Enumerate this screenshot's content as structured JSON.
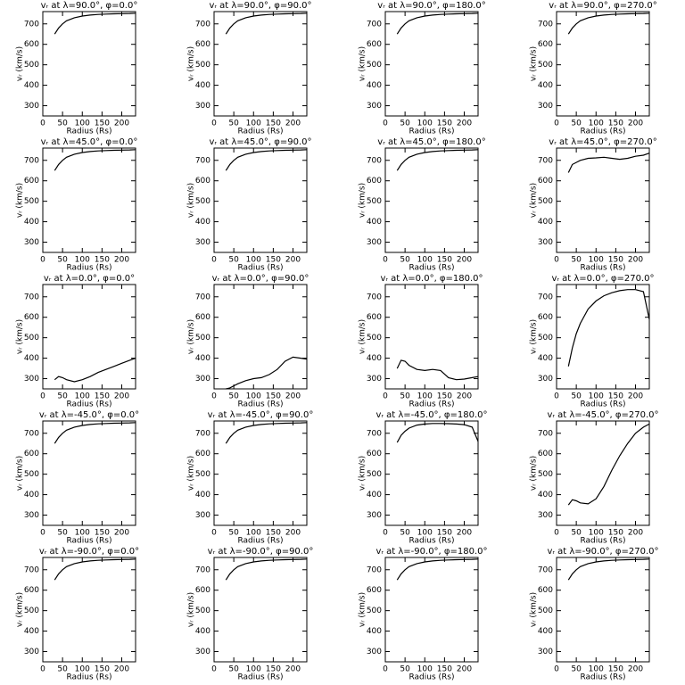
{
  "chart_data": [
    {
      "type": "line",
      "title": "vᵣ at λ=90.0°, φ=0.0°",
      "x_label": "Radius (Rs)",
      "y_label": "vᵣ (km/s)",
      "x": [
        30,
        40,
        50,
        60,
        80,
        100,
        120,
        140,
        160,
        180,
        200,
        220,
        235
      ],
      "values": [
        650,
        680,
        700,
        715,
        730,
        738,
        743,
        746,
        748,
        749,
        750,
        751,
        752
      ],
      "color": "#000000",
      "xlim": [
        0,
        235
      ],
      "ylim": [
        250,
        760
      ],
      "xticks": [
        0,
        50,
        100,
        150,
        200
      ],
      "yticks": [
        300,
        400,
        500,
        600,
        700
      ]
    },
    {
      "type": "line",
      "title": "vᵣ at λ=90.0°, φ=90.0°",
      "x_label": "Radius (Rs)",
      "y_label": "vᵣ (km/s)",
      "x": [
        30,
        40,
        50,
        60,
        80,
        100,
        120,
        140,
        160,
        180,
        200,
        220,
        235
      ],
      "values": [
        650,
        680,
        700,
        715,
        730,
        738,
        743,
        746,
        748,
        749,
        750,
        751,
        752
      ],
      "color": "#000000",
      "xlim": [
        0,
        235
      ],
      "ylim": [
        250,
        760
      ],
      "xticks": [
        0,
        50,
        100,
        150,
        200
      ],
      "yticks": [
        300,
        400,
        500,
        600,
        700
      ]
    },
    {
      "type": "line",
      "title": "vᵣ at λ=90.0°, φ=180.0°",
      "x_label": "Radius (Rs)",
      "y_label": "vᵣ (km/s)",
      "x": [
        30,
        40,
        50,
        60,
        80,
        100,
        120,
        140,
        160,
        180,
        200,
        220,
        235
      ],
      "values": [
        650,
        680,
        700,
        715,
        730,
        738,
        743,
        746,
        748,
        749,
        750,
        751,
        752
      ],
      "color": "#000000",
      "xlim": [
        0,
        235
      ],
      "ylim": [
        250,
        760
      ],
      "xticks": [
        0,
        50,
        100,
        150,
        200
      ],
      "yticks": [
        300,
        400,
        500,
        600,
        700
      ]
    },
    {
      "type": "line",
      "title": "vᵣ at λ=90.0°, φ=270.0°",
      "x_label": "Radius (Rs)",
      "y_label": "vᵣ (km/s)",
      "x": [
        30,
        40,
        50,
        60,
        80,
        100,
        120,
        140,
        160,
        180,
        200,
        220,
        235
      ],
      "values": [
        650,
        680,
        700,
        715,
        730,
        738,
        743,
        746,
        748,
        749,
        750,
        751,
        752
      ],
      "color": "#000000",
      "xlim": [
        0,
        235
      ],
      "ylim": [
        250,
        760
      ],
      "xticks": [
        0,
        50,
        100,
        150,
        200
      ],
      "yticks": [
        300,
        400,
        500,
        600,
        700
      ]
    },
    {
      "type": "line",
      "title": "vᵣ at λ=45.0°, φ=0.0°",
      "x_label": "Radius (Rs)",
      "y_label": "vᵣ (km/s)",
      "x": [
        30,
        40,
        50,
        60,
        80,
        100,
        120,
        140,
        160,
        180,
        200,
        220,
        235
      ],
      "values": [
        650,
        680,
        700,
        715,
        730,
        738,
        743,
        746,
        748,
        749,
        750,
        751,
        752
      ],
      "color": "#000000",
      "xlim": [
        0,
        235
      ],
      "ylim": [
        250,
        760
      ],
      "xticks": [
        0,
        50,
        100,
        150,
        200
      ],
      "yticks": [
        300,
        400,
        500,
        600,
        700
      ]
    },
    {
      "type": "line",
      "title": "vᵣ at λ=45.0°, φ=90.0°",
      "x_label": "Radius (Rs)",
      "y_label": "vᵣ (km/s)",
      "x": [
        30,
        40,
        50,
        60,
        80,
        100,
        120,
        140,
        160,
        180,
        200,
        220,
        235
      ],
      "values": [
        650,
        680,
        700,
        715,
        730,
        738,
        743,
        746,
        748,
        749,
        750,
        751,
        752
      ],
      "color": "#000000",
      "xlim": [
        0,
        235
      ],
      "ylim": [
        250,
        760
      ],
      "xticks": [
        0,
        50,
        100,
        150,
        200
      ],
      "yticks": [
        300,
        400,
        500,
        600,
        700
      ]
    },
    {
      "type": "line",
      "title": "vᵣ at λ=45.0°, φ=180.0°",
      "x_label": "Radius (Rs)",
      "y_label": "vᵣ (km/s)",
      "x": [
        30,
        40,
        50,
        60,
        80,
        100,
        120,
        140,
        160,
        180,
        200,
        220,
        235
      ],
      "values": [
        650,
        680,
        700,
        715,
        730,
        738,
        743,
        746,
        748,
        749,
        750,
        751,
        752
      ],
      "color": "#000000",
      "xlim": [
        0,
        235
      ],
      "ylim": [
        250,
        760
      ],
      "xticks": [
        0,
        50,
        100,
        150,
        200
      ],
      "yticks": [
        300,
        400,
        500,
        600,
        700
      ]
    },
    {
      "type": "line",
      "title": "vᵣ at λ=45.0°, φ=270.0°",
      "x_label": "Radius (Rs)",
      "y_label": "vᵣ (km/s)",
      "x": [
        30,
        40,
        50,
        60,
        80,
        100,
        120,
        140,
        160,
        180,
        200,
        220,
        235
      ],
      "values": [
        640,
        680,
        690,
        700,
        710,
        712,
        715,
        710,
        705,
        710,
        720,
        725,
        735
      ],
      "color": "#000000",
      "xlim": [
        0,
        235
      ],
      "ylim": [
        250,
        760
      ],
      "xticks": [
        0,
        50,
        100,
        150,
        200
      ],
      "yticks": [
        300,
        400,
        500,
        600,
        700
      ]
    },
    {
      "type": "line",
      "title": "vᵣ at λ=0.0°, φ=0.0°",
      "x_label": "Radius (Rs)",
      "y_label": "vᵣ (km/s)",
      "x": [
        30,
        40,
        50,
        60,
        80,
        100,
        120,
        140,
        160,
        180,
        200,
        220,
        235
      ],
      "values": [
        295,
        310,
        305,
        295,
        285,
        295,
        310,
        330,
        345,
        360,
        375,
        390,
        400
      ],
      "color": "#000000",
      "xlim": [
        0,
        235
      ],
      "ylim": [
        250,
        760
      ],
      "xticks": [
        0,
        50,
        100,
        150,
        200
      ],
      "yticks": [
        300,
        400,
        500,
        600,
        700
      ]
    },
    {
      "type": "line",
      "title": "vᵣ at λ=0.0°, φ=90.0°",
      "x_label": "Radius (Rs)",
      "y_label": "vᵣ (km/s)",
      "x": [
        30,
        40,
        50,
        60,
        80,
        100,
        120,
        140,
        160,
        180,
        200,
        220,
        235
      ],
      "values": [
        250,
        255,
        265,
        275,
        290,
        300,
        305,
        320,
        345,
        385,
        405,
        400,
        395
      ],
      "color": "#000000",
      "xlim": [
        0,
        235
      ],
      "ylim": [
        250,
        760
      ],
      "xticks": [
        0,
        50,
        100,
        150,
        200
      ],
      "yticks": [
        300,
        400,
        500,
        600,
        700
      ]
    },
    {
      "type": "line",
      "title": "vᵣ at λ=0.0°, φ=180.0°",
      "x_label": "Radius (Rs)",
      "y_label": "vᵣ (km/s)",
      "x": [
        30,
        40,
        50,
        60,
        80,
        100,
        120,
        140,
        160,
        180,
        200,
        220,
        235
      ],
      "values": [
        350,
        390,
        385,
        365,
        345,
        340,
        345,
        340,
        305,
        295,
        298,
        305,
        310
      ],
      "color": "#000000",
      "xlim": [
        0,
        235
      ],
      "ylim": [
        250,
        760
      ],
      "xticks": [
        0,
        50,
        100,
        150,
        200
      ],
      "yticks": [
        300,
        400,
        500,
        600,
        700
      ]
    },
    {
      "type": "line",
      "title": "vᵣ at λ=0.0°, φ=270.0°",
      "x_label": "Radius (Rs)",
      "y_label": "vᵣ (km/s)",
      "x": [
        30,
        40,
        50,
        60,
        80,
        100,
        120,
        140,
        160,
        180,
        200,
        220,
        235
      ],
      "values": [
        360,
        450,
        520,
        570,
        640,
        680,
        705,
        720,
        730,
        735,
        735,
        725,
        590
      ],
      "color": "#000000",
      "xlim": [
        0,
        235
      ],
      "ylim": [
        250,
        760
      ],
      "xticks": [
        0,
        50,
        100,
        150,
        200
      ],
      "yticks": [
        300,
        400,
        500,
        600,
        700
      ]
    },
    {
      "type": "line",
      "title": "vᵣ at λ=-45.0°, φ=0.0°",
      "x_label": "Radius (Rs)",
      "y_label": "vᵣ (km/s)",
      "x": [
        30,
        40,
        50,
        60,
        80,
        100,
        120,
        140,
        160,
        180,
        200,
        220,
        235
      ],
      "values": [
        650,
        680,
        700,
        715,
        730,
        738,
        743,
        746,
        748,
        749,
        750,
        751,
        752
      ],
      "color": "#000000",
      "xlim": [
        0,
        235
      ],
      "ylim": [
        250,
        760
      ],
      "xticks": [
        0,
        50,
        100,
        150,
        200
      ],
      "yticks": [
        300,
        400,
        500,
        600,
        700
      ]
    },
    {
      "type": "line",
      "title": "vᵣ at λ=-45.0°, φ=90.0°",
      "x_label": "Radius (Rs)",
      "y_label": "vᵣ (km/s)",
      "x": [
        30,
        40,
        50,
        60,
        80,
        100,
        120,
        140,
        160,
        180,
        200,
        220,
        235
      ],
      "values": [
        650,
        680,
        700,
        715,
        730,
        738,
        743,
        746,
        748,
        749,
        750,
        751,
        752
      ],
      "color": "#000000",
      "xlim": [
        0,
        235
      ],
      "ylim": [
        250,
        760
      ],
      "xticks": [
        0,
        50,
        100,
        150,
        200
      ],
      "yticks": [
        300,
        400,
        500,
        600,
        700
      ]
    },
    {
      "type": "line",
      "title": "vᵣ at λ=-45.0°, φ=180.0°",
      "x_label": "Radius (Rs)",
      "y_label": "vᵣ (km/s)",
      "x": [
        30,
        40,
        50,
        60,
        80,
        100,
        120,
        140,
        160,
        180,
        200,
        220,
        235
      ],
      "values": [
        655,
        690,
        710,
        725,
        740,
        745,
        748,
        748,
        747,
        745,
        742,
        730,
        660
      ],
      "color": "#000000",
      "xlim": [
        0,
        235
      ],
      "ylim": [
        250,
        760
      ],
      "xticks": [
        0,
        50,
        100,
        150,
        200
      ],
      "yticks": [
        300,
        400,
        500,
        600,
        700
      ]
    },
    {
      "type": "line",
      "title": "vᵣ at λ=-45.0°, φ=270.0°",
      "x_label": "Radius (Rs)",
      "y_label": "vᵣ (km/s)",
      "x": [
        30,
        40,
        50,
        60,
        80,
        100,
        120,
        140,
        160,
        180,
        200,
        220,
        235
      ],
      "values": [
        350,
        375,
        370,
        360,
        355,
        380,
        440,
        520,
        590,
        650,
        700,
        730,
        745
      ],
      "color": "#000000",
      "xlim": [
        0,
        235
      ],
      "ylim": [
        250,
        760
      ],
      "xticks": [
        0,
        50,
        100,
        150,
        200
      ],
      "yticks": [
        300,
        400,
        500,
        600,
        700
      ]
    },
    {
      "type": "line",
      "title": "vᵣ at λ=-90.0°, φ=0.0°",
      "x_label": "Radius (Rs)",
      "y_label": "vᵣ (km/s)",
      "x": [
        30,
        40,
        50,
        60,
        80,
        100,
        120,
        140,
        160,
        180,
        200,
        220,
        235
      ],
      "values": [
        650,
        680,
        700,
        715,
        730,
        738,
        743,
        746,
        748,
        749,
        750,
        751,
        752
      ],
      "color": "#000000",
      "xlim": [
        0,
        235
      ],
      "ylim": [
        250,
        760
      ],
      "xticks": [
        0,
        50,
        100,
        150,
        200
      ],
      "yticks": [
        300,
        400,
        500,
        600,
        700
      ]
    },
    {
      "type": "line",
      "title": "vᵣ at λ=-90.0°, φ=90.0°",
      "x_label": "Radius (Rs)",
      "y_label": "vᵣ (km/s)",
      "x": [
        30,
        40,
        50,
        60,
        80,
        100,
        120,
        140,
        160,
        180,
        200,
        220,
        235
      ],
      "values": [
        650,
        680,
        700,
        715,
        730,
        738,
        743,
        746,
        748,
        749,
        750,
        751,
        752
      ],
      "color": "#000000",
      "xlim": [
        0,
        235
      ],
      "ylim": [
        250,
        760
      ],
      "xticks": [
        0,
        50,
        100,
        150,
        200
      ],
      "yticks": [
        300,
        400,
        500,
        600,
        700
      ]
    },
    {
      "type": "line",
      "title": "vᵣ at λ=-90.0°, φ=180.0°",
      "x_label": "Radius (Rs)",
      "y_label": "vᵣ (km/s)",
      "x": [
        30,
        40,
        50,
        60,
        80,
        100,
        120,
        140,
        160,
        180,
        200,
        220,
        235
      ],
      "values": [
        650,
        680,
        700,
        715,
        730,
        738,
        743,
        746,
        748,
        749,
        750,
        751,
        752
      ],
      "color": "#000000",
      "xlim": [
        0,
        235
      ],
      "ylim": [
        250,
        760
      ],
      "xticks": [
        0,
        50,
        100,
        150,
        200
      ],
      "yticks": [
        300,
        400,
        500,
        600,
        700
      ]
    },
    {
      "type": "line",
      "title": "vᵣ at λ=-90.0°, φ=270.0°",
      "x_label": "Radius (Rs)",
      "y_label": "vᵣ (km/s)",
      "x": [
        30,
        40,
        50,
        60,
        80,
        100,
        120,
        140,
        160,
        180,
        200,
        220,
        235
      ],
      "values": [
        650,
        680,
        700,
        715,
        730,
        738,
        743,
        746,
        748,
        749,
        750,
        751,
        752
      ],
      "color": "#000000",
      "xlim": [
        0,
        235
      ],
      "ylim": [
        250,
        760
      ],
      "xticks": [
        0,
        50,
        100,
        150,
        200
      ],
      "yticks": [
        300,
        400,
        500,
        600,
        700
      ]
    }
  ]
}
